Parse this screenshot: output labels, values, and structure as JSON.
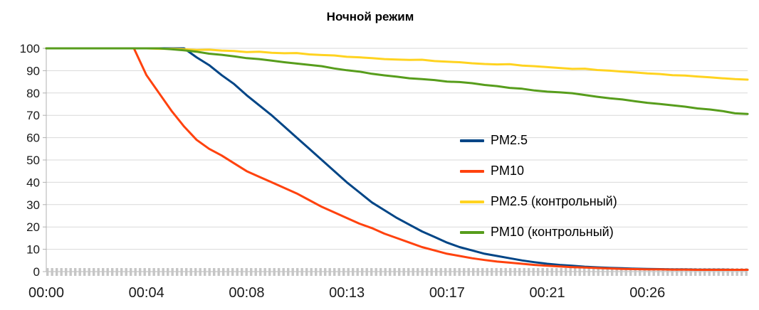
{
  "chart_data": {
    "type": "line",
    "title": "Ночной режим",
    "xlabel": "",
    "ylabel": "",
    "xlim": [
      0,
      28
    ],
    "ylim": [
      0,
      100
    ],
    "grid": true,
    "legend_position": "center-right",
    "grid_color": "#d9d9d9",
    "axis_color": "#b0b0b0",
    "tick_band_color": "#c6c6c6",
    "text_color": "#1a1a1a",
    "x_start": 0,
    "x_step": 0.5,
    "x_ticks": [
      {
        "t": 0,
        "label": "00:00"
      },
      {
        "t": 4,
        "label": "00:04"
      },
      {
        "t": 8,
        "label": "00:08"
      },
      {
        "t": 12,
        "label": "00:13"
      },
      {
        "t": 16,
        "label": "00:17"
      },
      {
        "t": 20,
        "label": "00:21"
      },
      {
        "t": 24,
        "label": "00:26"
      }
    ],
    "y_ticks": [
      0,
      10,
      20,
      30,
      40,
      50,
      60,
      70,
      80,
      90,
      100
    ],
    "series": [
      {
        "name": "PM2.5",
        "color": "#004586",
        "values": [
          100,
          100,
          100,
          100,
          100,
          100,
          100,
          100,
          100,
          100,
          100,
          100,
          96,
          92.5,
          88,
          84,
          79,
          74.5,
          70,
          65,
          60,
          55,
          50,
          45,
          40,
          35.5,
          31,
          27.5,
          24,
          21,
          18,
          15.5,
          13,
          11,
          9.5,
          8,
          7,
          6,
          5,
          4.2,
          3.5,
          3,
          2.6,
          2.2,
          1.9,
          1.7,
          1.5,
          1.3,
          1.2,
          1.1,
          1,
          1,
          0.9,
          0.9,
          0.9,
          0.8,
          0.8
        ]
      },
      {
        "name": "PM10",
        "color": "#ff420e",
        "values": [
          100,
          100,
          100,
          100,
          100,
          100,
          100,
          100,
          88,
          80,
          72,
          65,
          59,
          55,
          52,
          48.5,
          45,
          42.5,
          40,
          37.5,
          35,
          32,
          29,
          26.5,
          24,
          21.5,
          19.5,
          17,
          15,
          13,
          11,
          9.5,
          8,
          7,
          6,
          5.2,
          4.5,
          4,
          3.5,
          3,
          2.6,
          2.3,
          2,
          1.8,
          1.6,
          1.4,
          1.2,
          1.1,
          1,
          1,
          0.9,
          0.9,
          0.8,
          0.8,
          0.8,
          0.8,
          0.8
        ]
      },
      {
        "name": "PM2.5 (контрольный)",
        "color": "#ffd320",
        "values": [
          100,
          100,
          100,
          100,
          100,
          100,
          100,
          100,
          100,
          99.8,
          99.8,
          99.6,
          99.3,
          99.4,
          99,
          98.8,
          98.3,
          98.5,
          98,
          97.8,
          97.9,
          97.3,
          97,
          96.8,
          96.2,
          96,
          95.6,
          95.2,
          95,
          94.8,
          94.9,
          94.3,
          94,
          93.8,
          93.3,
          93,
          92.8,
          92.9,
          92.3,
          92,
          91.6,
          91.2,
          90.8,
          90.9,
          90.3,
          90,
          89.6,
          89.2,
          88.8,
          88.5,
          88,
          87.8,
          87.4,
          87,
          86.6,
          86.2,
          86
        ]
      },
      {
        "name": "PM10 (контрольный)",
        "color": "#579d1c",
        "values": [
          100,
          100,
          100,
          100,
          100,
          100,
          100,
          100,
          100,
          100,
          99.6,
          99.1,
          98.5,
          97.6,
          97.1,
          96.4,
          95.6,
          95.2,
          94.5,
          93.8,
          93.2,
          92.6,
          92,
          91,
          90.2,
          89.6,
          88.6,
          87.9,
          87.3,
          86.6,
          86.2,
          85.8,
          85.1,
          84.9,
          84.4,
          83.6,
          83.1,
          82.3,
          81.9,
          81.1,
          80.6,
          80.3,
          79.9,
          79.1,
          78.3,
          77.6,
          77.1,
          76.3,
          75.6,
          75.1,
          74.5,
          73.9,
          73.1,
          72.6,
          71.9,
          70.9,
          70.6
        ]
      }
    ]
  }
}
